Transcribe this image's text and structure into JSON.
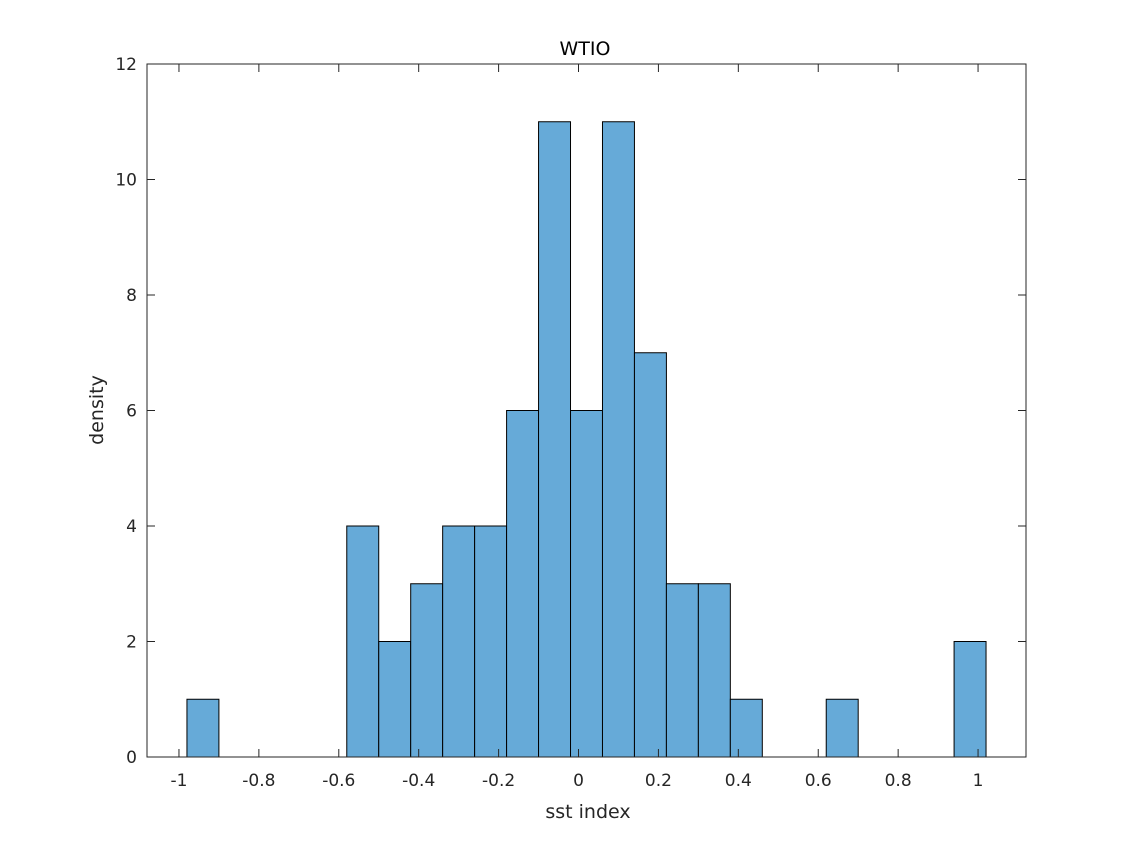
{
  "chart_data": {
    "type": "bar",
    "title": "WTIO",
    "xlabel": "sst index",
    "ylabel": "density",
    "xlim": [
      -1.08,
      1.12
    ],
    "ylim": [
      0,
      12
    ],
    "xticks": [
      -1,
      -0.8,
      -0.6,
      -0.4,
      -0.2,
      0,
      0.2,
      0.4,
      0.6,
      0.8,
      1
    ],
    "xtick_labels": [
      "-1",
      "-0.8",
      "-0.6",
      "-0.4",
      "-0.2",
      "0",
      "0.2",
      "0.4",
      "0.6",
      "0.8",
      "1"
    ],
    "yticks": [
      0,
      2,
      4,
      6,
      8,
      10,
      12
    ],
    "ytick_labels": [
      "0",
      "2",
      "4",
      "6",
      "8",
      "10",
      "12"
    ],
    "grid": false,
    "legend": "none",
    "bin_width": 0.08,
    "bins": [
      {
        "left": -0.98,
        "value": 1
      },
      {
        "left": -0.9,
        "value": 0
      },
      {
        "left": -0.82,
        "value": 0
      },
      {
        "left": -0.74,
        "value": 0
      },
      {
        "left": -0.66,
        "value": 0
      },
      {
        "left": -0.58,
        "value": 4
      },
      {
        "left": -0.5,
        "value": 2
      },
      {
        "left": -0.42,
        "value": 3
      },
      {
        "left": -0.34,
        "value": 4
      },
      {
        "left": -0.26,
        "value": 4
      },
      {
        "left": -0.18,
        "value": 6
      },
      {
        "left": -0.1,
        "value": 11
      },
      {
        "left": -0.02,
        "value": 6
      },
      {
        "left": 0.06,
        "value": 11
      },
      {
        "left": 0.14,
        "value": 7
      },
      {
        "left": 0.22,
        "value": 3
      },
      {
        "left": 0.3,
        "value": 3
      },
      {
        "left": 0.38,
        "value": 1
      },
      {
        "left": 0.46,
        "value": 0
      },
      {
        "left": 0.54,
        "value": 0
      },
      {
        "left": 0.62,
        "value": 1
      },
      {
        "left": 0.7,
        "value": 0
      },
      {
        "left": 0.78,
        "value": 0
      },
      {
        "left": 0.86,
        "value": 0
      },
      {
        "left": 0.94,
        "value": 2
      }
    ],
    "colors": {
      "bar_fill": "#66aad8",
      "bar_edge": "#000000",
      "axis": "#262626"
    }
  }
}
